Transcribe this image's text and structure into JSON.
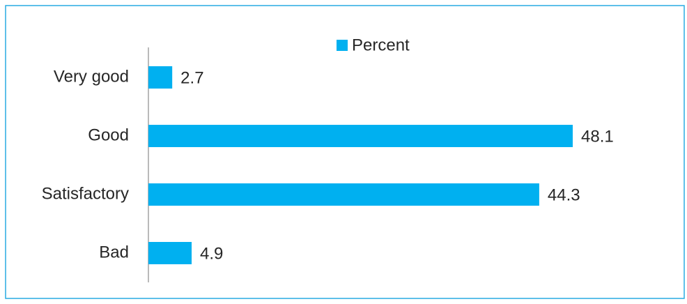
{
  "chart_data": {
    "type": "bar",
    "orientation": "horizontal",
    "categories": [
      "Very good",
      "Good",
      "Satisfactory",
      "Bad"
    ],
    "series": [
      {
        "name": "Percent",
        "color": "#00b0f0",
        "values": [
          2.7,
          48.1,
          44.3,
          4.9
        ]
      }
    ],
    "legend": "top"
  }
}
